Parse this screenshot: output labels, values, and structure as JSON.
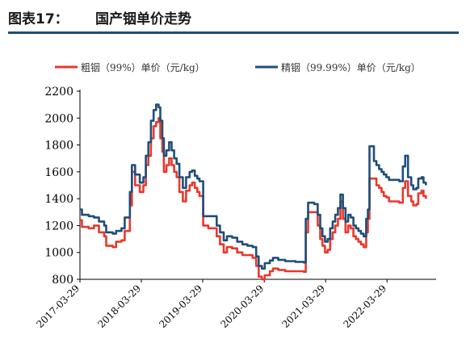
{
  "figure": {
    "label": "图表17：",
    "title": "国产铟单价走势"
  },
  "chart_data": {
    "type": "line",
    "ylim": [
      800,
      2200
    ],
    "yticks": [
      800,
      1000,
      1200,
      1400,
      1600,
      1800,
      2000,
      2200
    ],
    "xlim": [
      "2017-03-29",
      "2023-01-15"
    ],
    "xticks": [
      "2017-03-29",
      "2018-03-29",
      "2019-03-29",
      "2020-03-29",
      "2021-03-29",
      "2022-03-29"
    ],
    "grid": false,
    "legend_position": "top",
    "series": [
      {
        "name": "粗铟（99%）单价（元/kg）",
        "color": "#e8382e",
        "points": [
          [
            "2017-03-29",
            1240
          ],
          [
            "2017-04-10",
            1190
          ],
          [
            "2017-05-20",
            1180
          ],
          [
            "2017-06-20",
            1200
          ],
          [
            "2017-07-20",
            1150
          ],
          [
            "2017-08-20",
            1120
          ],
          [
            "2017-09-01",
            1050
          ],
          [
            "2017-10-10",
            1040
          ],
          [
            "2017-10-30",
            1080
          ],
          [
            "2017-12-01",
            1090
          ],
          [
            "2017-12-20",
            1160
          ],
          [
            "2018-01-20",
            1350
          ],
          [
            "2018-02-01",
            1600
          ],
          [
            "2018-02-20",
            1500
          ],
          [
            "2018-03-20",
            1450
          ],
          [
            "2018-04-10",
            1500
          ],
          [
            "2018-04-25",
            1650
          ],
          [
            "2018-05-10",
            1720
          ],
          [
            "2018-05-25",
            1850
          ],
          [
            "2018-06-10",
            1940
          ],
          [
            "2018-06-25",
            1970
          ],
          [
            "2018-07-10",
            2000
          ],
          [
            "2018-07-20",
            1850
          ],
          [
            "2018-08-01",
            1750
          ],
          [
            "2018-08-10",
            1600
          ],
          [
            "2018-08-25",
            1650
          ],
          [
            "2018-09-10",
            1700
          ],
          [
            "2018-09-25",
            1650
          ],
          [
            "2018-10-10",
            1600
          ],
          [
            "2018-10-25",
            1560
          ],
          [
            "2018-11-10",
            1450
          ],
          [
            "2018-12-01",
            1380
          ],
          [
            "2018-12-20",
            1460
          ],
          [
            "2019-01-10",
            1500
          ],
          [
            "2019-01-25",
            1520
          ],
          [
            "2019-02-10",
            1480
          ],
          [
            "2019-02-25",
            1450
          ],
          [
            "2019-03-10",
            1420
          ],
          [
            "2019-04-01",
            1200
          ],
          [
            "2019-05-01",
            1180
          ],
          [
            "2019-06-01",
            1180
          ],
          [
            "2019-06-20",
            1120
          ],
          [
            "2019-07-10",
            1060
          ],
          [
            "2019-08-01",
            1000
          ],
          [
            "2019-08-20",
            1040
          ],
          [
            "2019-09-20",
            1030
          ],
          [
            "2019-10-20",
            1000
          ],
          [
            "2019-11-20",
            980
          ],
          [
            "2019-12-20",
            980
          ],
          [
            "2020-01-20",
            960
          ],
          [
            "2020-02-10",
            900
          ],
          [
            "2020-02-25",
            820
          ],
          [
            "2020-03-15",
            800
          ],
          [
            "2020-04-01",
            830
          ],
          [
            "2020-05-01",
            860
          ],
          [
            "2020-05-20",
            880
          ],
          [
            "2020-06-20",
            870
          ],
          [
            "2020-08-01",
            860
          ],
          [
            "2020-10-01",
            860
          ],
          [
            "2020-11-20",
            855
          ],
          [
            "2020-12-01",
            1150
          ],
          [
            "2020-12-15",
            1300
          ],
          [
            "2021-01-20",
            1300
          ],
          [
            "2021-02-10",
            1200
          ],
          [
            "2021-02-25",
            1100
          ],
          [
            "2021-03-10",
            1050
          ],
          [
            "2021-03-25",
            1000
          ],
          [
            "2021-04-10",
            1020
          ],
          [
            "2021-04-25",
            1100
          ],
          [
            "2021-05-10",
            1150
          ],
          [
            "2021-05-25",
            1200
          ],
          [
            "2021-06-10",
            1250
          ],
          [
            "2021-06-25",
            1380
          ],
          [
            "2021-07-10",
            1250
          ],
          [
            "2021-07-25",
            1150
          ],
          [
            "2021-08-10",
            1200
          ],
          [
            "2021-08-25",
            1180
          ],
          [
            "2021-09-10",
            1120
          ],
          [
            "2021-09-25",
            1100
          ],
          [
            "2021-10-10",
            1080
          ],
          [
            "2021-10-25",
            1060
          ],
          [
            "2021-11-10",
            1040
          ],
          [
            "2021-11-25",
            1150
          ],
          [
            "2021-12-05",
            1250
          ],
          [
            "2021-12-15",
            1550
          ],
          [
            "2022-01-10",
            1550
          ],
          [
            "2022-01-25",
            1500
          ],
          [
            "2022-02-10",
            1480
          ],
          [
            "2022-02-25",
            1450
          ],
          [
            "2022-03-10",
            1420
          ],
          [
            "2022-03-25",
            1410
          ],
          [
            "2022-04-10",
            1380
          ],
          [
            "2022-05-10",
            1380
          ],
          [
            "2022-06-10",
            1370
          ],
          [
            "2022-07-01",
            1480
          ],
          [
            "2022-07-15",
            1530
          ],
          [
            "2022-08-01",
            1420
          ],
          [
            "2022-08-20",
            1380
          ],
          [
            "2022-09-01",
            1350
          ],
          [
            "2022-09-20",
            1360
          ],
          [
            "2022-10-01",
            1440
          ],
          [
            "2022-10-20",
            1460
          ],
          [
            "2022-11-01",
            1420
          ],
          [
            "2022-11-15",
            1400
          ]
        ]
      },
      {
        "name": "精铟（99.99%）单价（元/kg）",
        "color": "#1f4e79",
        "points": [
          [
            "2017-03-29",
            1320
          ],
          [
            "2017-04-10",
            1280
          ],
          [
            "2017-05-20",
            1270
          ],
          [
            "2017-06-20",
            1260
          ],
          [
            "2017-07-20",
            1230
          ],
          [
            "2017-08-20",
            1200
          ],
          [
            "2017-09-01",
            1150
          ],
          [
            "2017-10-10",
            1140
          ],
          [
            "2017-10-30",
            1160
          ],
          [
            "2017-12-01",
            1180
          ],
          [
            "2017-12-20",
            1260
          ],
          [
            "2018-01-20",
            1450
          ],
          [
            "2018-02-01",
            1650
          ],
          [
            "2018-02-20",
            1580
          ],
          [
            "2018-03-20",
            1520
          ],
          [
            "2018-04-10",
            1560
          ],
          [
            "2018-04-25",
            1720
          ],
          [
            "2018-05-10",
            1820
          ],
          [
            "2018-05-25",
            1980
          ],
          [
            "2018-06-10",
            2060
          ],
          [
            "2018-06-25",
            2100
          ],
          [
            "2018-07-10",
            2080
          ],
          [
            "2018-07-20",
            1980
          ],
          [
            "2018-08-01",
            1850
          ],
          [
            "2018-08-10",
            1720
          ],
          [
            "2018-08-25",
            1760
          ],
          [
            "2018-09-10",
            1820
          ],
          [
            "2018-09-25",
            1760
          ],
          [
            "2018-10-10",
            1700
          ],
          [
            "2018-10-25",
            1660
          ],
          [
            "2018-11-10",
            1560
          ],
          [
            "2018-12-01",
            1480
          ],
          [
            "2018-12-20",
            1560
          ],
          [
            "2019-01-10",
            1600
          ],
          [
            "2019-01-25",
            1610
          ],
          [
            "2019-02-10",
            1570
          ],
          [
            "2019-02-25",
            1550
          ],
          [
            "2019-03-10",
            1530
          ],
          [
            "2019-04-01",
            1270
          ],
          [
            "2019-05-01",
            1270
          ],
          [
            "2019-06-01",
            1270
          ],
          [
            "2019-06-20",
            1200
          ],
          [
            "2019-07-10",
            1150
          ],
          [
            "2019-08-01",
            1090
          ],
          [
            "2019-08-20",
            1120
          ],
          [
            "2019-09-20",
            1110
          ],
          [
            "2019-10-20",
            1080
          ],
          [
            "2019-11-20",
            1060
          ],
          [
            "2019-12-20",
            1050
          ],
          [
            "2020-01-20",
            1040
          ],
          [
            "2020-02-10",
            970
          ],
          [
            "2020-02-25",
            900
          ],
          [
            "2020-03-15",
            880
          ],
          [
            "2020-04-01",
            920
          ],
          [
            "2020-05-01",
            940
          ],
          [
            "2020-05-20",
            960
          ],
          [
            "2020-06-20",
            945
          ],
          [
            "2020-08-01",
            935
          ],
          [
            "2020-10-01",
            930
          ],
          [
            "2020-11-20",
            925
          ],
          [
            "2020-12-01",
            1250
          ],
          [
            "2020-12-15",
            1370
          ],
          [
            "2021-01-20",
            1360
          ],
          [
            "2021-02-10",
            1280
          ],
          [
            "2021-02-25",
            1180
          ],
          [
            "2021-03-10",
            1120
          ],
          [
            "2021-03-25",
            1080
          ],
          [
            "2021-04-10",
            1100
          ],
          [
            "2021-04-25",
            1180
          ],
          [
            "2021-05-10",
            1230
          ],
          [
            "2021-05-25",
            1280
          ],
          [
            "2021-06-10",
            1330
          ],
          [
            "2021-06-25",
            1430
          ],
          [
            "2021-07-10",
            1330
          ],
          [
            "2021-07-25",
            1230
          ],
          [
            "2021-08-10",
            1280
          ],
          [
            "2021-08-25",
            1260
          ],
          [
            "2021-09-10",
            1200
          ],
          [
            "2021-09-25",
            1180
          ],
          [
            "2021-10-10",
            1160
          ],
          [
            "2021-10-25",
            1140
          ],
          [
            "2021-11-10",
            1120
          ],
          [
            "2021-11-25",
            1250
          ],
          [
            "2021-12-05",
            1320
          ],
          [
            "2021-12-15",
            1790
          ],
          [
            "2022-01-10",
            1680
          ],
          [
            "2022-01-25",
            1650
          ],
          [
            "2022-02-10",
            1620
          ],
          [
            "2022-02-25",
            1600
          ],
          [
            "2022-03-10",
            1580
          ],
          [
            "2022-03-25",
            1560
          ],
          [
            "2022-04-10",
            1540
          ],
          [
            "2022-05-10",
            1540
          ],
          [
            "2022-06-10",
            1530
          ],
          [
            "2022-07-01",
            1640
          ],
          [
            "2022-07-15",
            1720
          ],
          [
            "2022-08-01",
            1560
          ],
          [
            "2022-08-20",
            1500
          ],
          [
            "2022-09-01",
            1470
          ],
          [
            "2022-09-20",
            1480
          ],
          [
            "2022-10-01",
            1550
          ],
          [
            "2022-10-20",
            1560
          ],
          [
            "2022-11-01",
            1520
          ],
          [
            "2022-11-15",
            1500
          ]
        ]
      }
    ]
  }
}
